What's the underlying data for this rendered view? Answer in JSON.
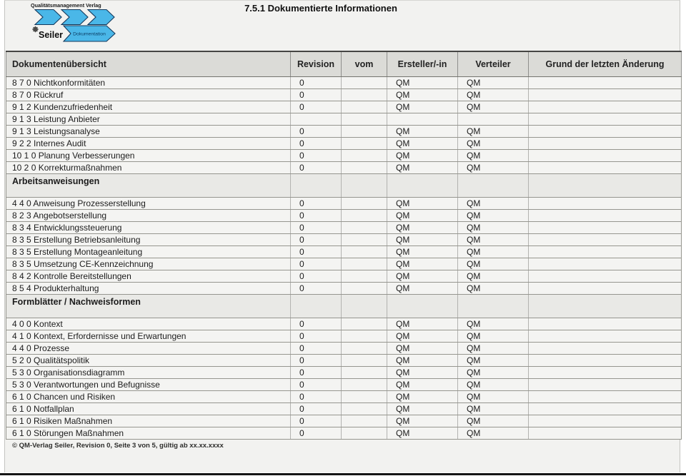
{
  "page": {
    "title": "7.5.1 Dokumentierte Informationen"
  },
  "logo": {
    "top_line": "Qualitätsmanagement Verlag",
    "brand": "Seiler",
    "banner": "Dokumentation"
  },
  "table": {
    "columns": [
      "Dokumentenübersicht",
      "Revision",
      "vom",
      "Ersteller/-in",
      "Verteiler",
      "Grund der letzten Änderung"
    ],
    "rows": [
      {
        "type": "row",
        "label": "8 7 0 Nichtkonformitäten",
        "revision": "0",
        "vom": "",
        "ersteller": "QM",
        "verteiler": "QM",
        "grund": ""
      },
      {
        "type": "row",
        "label": "8 7 0 Rückruf",
        "revision": "0",
        "vom": "",
        "ersteller": "QM",
        "verteiler": "QM",
        "grund": ""
      },
      {
        "type": "row",
        "label": "9 1 2 Kundenzufriedenheit",
        "revision": "0",
        "vom": "",
        "ersteller": "QM",
        "verteiler": "QM",
        "grund": ""
      },
      {
        "type": "row",
        "label": "9 1 3 Leistung Anbieter",
        "revision": "",
        "vom": "",
        "ersteller": "",
        "verteiler": "",
        "grund": ""
      },
      {
        "type": "row",
        "label": "9 1 3 Leistungsanalyse",
        "revision": "0",
        "vom": "",
        "ersteller": "QM",
        "verteiler": "QM",
        "grund": ""
      },
      {
        "type": "row",
        "label": "9 2 2 Internes Audit",
        "revision": "0",
        "vom": "",
        "ersteller": "QM",
        "verteiler": "QM",
        "grund": ""
      },
      {
        "type": "row",
        "label": "10 1 0 Planung Verbesserungen",
        "revision": "0",
        "vom": "",
        "ersteller": "QM",
        "verteiler": "QM",
        "grund": ""
      },
      {
        "type": "row",
        "label": "10 2 0 Korrekturmaßnahmen",
        "revision": "0",
        "vom": "",
        "ersteller": "QM",
        "verteiler": "QM",
        "grund": ""
      },
      {
        "type": "section",
        "label": "Arbeitsanweisungen",
        "revision": "",
        "vom": "",
        "ersteller": "",
        "verteiler": "",
        "grund": ""
      },
      {
        "type": "row",
        "label": "4 4 0 Anweisung Prozesserstellung",
        "revision": "0",
        "vom": "",
        "ersteller": "QM",
        "verteiler": "QM",
        "grund": ""
      },
      {
        "type": "row",
        "label": "8 2 3 Angebotserstellung",
        "revision": "0",
        "vom": "",
        "ersteller": "QM",
        "verteiler": "QM",
        "grund": ""
      },
      {
        "type": "row",
        "label": "8 3 4 Entwicklungssteuerung",
        "revision": "0",
        "vom": "",
        "ersteller": "QM",
        "verteiler": "QM",
        "grund": ""
      },
      {
        "type": "row",
        "label": "8 3 5 Erstellung Betriebsanleitung",
        "revision": "0",
        "vom": "",
        "ersteller": "QM",
        "verteiler": "QM",
        "grund": ""
      },
      {
        "type": "row",
        "label": "8 3 5 Erstellung Montageanleitung",
        "revision": "0",
        "vom": "",
        "ersteller": "QM",
        "verteiler": "QM",
        "grund": ""
      },
      {
        "type": "row",
        "label": "8 3 5 Umsetzung CE-Kennzeichnung",
        "revision": "0",
        "vom": "",
        "ersteller": "QM",
        "verteiler": "QM",
        "grund": ""
      },
      {
        "type": "row",
        "label": "8 4 2 Kontrolle Bereitstellungen",
        "revision": "0",
        "vom": "",
        "ersteller": "QM",
        "verteiler": "QM",
        "grund": ""
      },
      {
        "type": "row",
        "label": "8 5 4 Produkterhaltung",
        "revision": "0",
        "vom": "",
        "ersteller": "QM",
        "verteiler": "QM",
        "grund": ""
      },
      {
        "type": "section",
        "label": "Formblätter / Nachweisformen",
        "revision": "",
        "vom": "",
        "ersteller": "",
        "verteiler": "",
        "grund": ""
      },
      {
        "type": "row",
        "label": "4 0 0 Kontext",
        "revision": "0",
        "vom": "",
        "ersteller": "QM",
        "verteiler": "QM",
        "grund": ""
      },
      {
        "type": "row",
        "label": "4 1 0 Kontext, Erfordernisse und Erwartungen",
        "revision": "0",
        "vom": "",
        "ersteller": "QM",
        "verteiler": "QM",
        "grund": ""
      },
      {
        "type": "row",
        "label": "4 4 0 Prozesse",
        "revision": "0",
        "vom": "",
        "ersteller": "QM",
        "verteiler": "QM",
        "grund": ""
      },
      {
        "type": "row",
        "label": "5 2 0 Qualitätspolitik",
        "revision": "0",
        "vom": "",
        "ersteller": "QM",
        "verteiler": "QM",
        "grund": ""
      },
      {
        "type": "row",
        "label": "5 3 0 Organisationsdiagramm",
        "revision": "0",
        "vom": "",
        "ersteller": "QM",
        "verteiler": "QM",
        "grund": ""
      },
      {
        "type": "row",
        "label": "5 3 0 Verantwortungen und Befugnisse",
        "revision": "0",
        "vom": "",
        "ersteller": "QM",
        "verteiler": "QM",
        "grund": ""
      },
      {
        "type": "row",
        "label": "6 1 0 Chancen und Risiken",
        "revision": "0",
        "vom": "",
        "ersteller": "QM",
        "verteiler": "QM",
        "grund": ""
      },
      {
        "type": "row",
        "label": "6 1 0 Notfallplan",
        "revision": "0",
        "vom": "",
        "ersteller": "QM",
        "verteiler": "QM",
        "grund": ""
      },
      {
        "type": "row",
        "label": "6 1 0 Risiken Maßnahmen",
        "revision": "0",
        "vom": "",
        "ersteller": "QM",
        "verteiler": "QM",
        "grund": ""
      },
      {
        "type": "row",
        "label": "6 1 0 Störungen Maßnahmen",
        "revision": "0",
        "vom": "",
        "ersteller": "QM",
        "verteiler": "QM",
        "grund": ""
      }
    ]
  },
  "footer": {
    "text": "© QM-Verlag Seiler, Revision 0, Seite 3 von 5, gültig ab xx.xx.xxxx"
  },
  "colors": {
    "accent": "#4ab7e8",
    "accent-outline": "#14395c",
    "banner-text": "#0d3f66",
    "header-fill": "#dbdbd7",
    "section-fill": "#e9e9e6",
    "row-fill": "#f4f4f2",
    "band-fill": "#f2f2f0",
    "bar": "#141414"
  }
}
